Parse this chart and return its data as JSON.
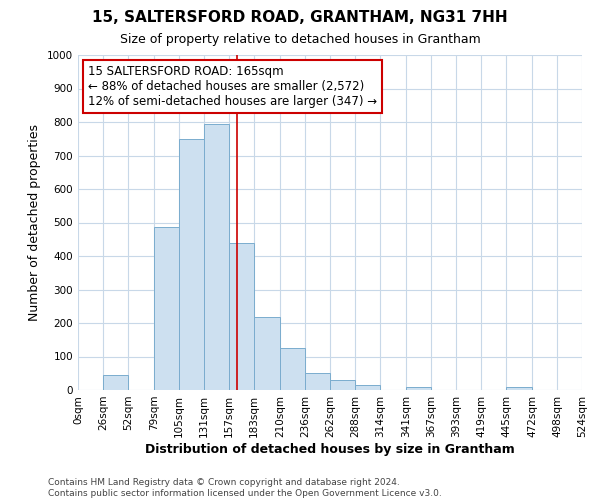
{
  "title": "15, SALTERSFORD ROAD, GRANTHAM, NG31 7HH",
  "subtitle": "Size of property relative to detached houses in Grantham",
  "xlabel": "Distribution of detached houses by size in Grantham",
  "ylabel": "Number of detached properties",
  "bar_left_edges": [
    0,
    26,
    52,
    79,
    105,
    131,
    157,
    183,
    210,
    236,
    262,
    288,
    314,
    341,
    367,
    393,
    419,
    445,
    472,
    498
  ],
  "bar_widths": [
    26,
    26,
    27,
    26,
    26,
    26,
    26,
    27,
    26,
    26,
    26,
    26,
    27,
    26,
    26,
    26,
    26,
    27,
    26,
    26
  ],
  "bar_heights": [
    0,
    44,
    0,
    487,
    750,
    793,
    438,
    218,
    125,
    52,
    29,
    14,
    0,
    9,
    0,
    0,
    0,
    8,
    0,
    0
  ],
  "bar_color": "#cde0f0",
  "bar_edgecolor": "#7aacce",
  "highlight_line_x": 165,
  "highlight_line_color": "#cc0000",
  "ylim": [
    0,
    1000
  ],
  "yticks": [
    0,
    100,
    200,
    300,
    400,
    500,
    600,
    700,
    800,
    900,
    1000
  ],
  "xtick_labels": [
    "0sqm",
    "26sqm",
    "52sqm",
    "79sqm",
    "105sqm",
    "131sqm",
    "157sqm",
    "183sqm",
    "210sqm",
    "236sqm",
    "262sqm",
    "288sqm",
    "314sqm",
    "341sqm",
    "367sqm",
    "393sqm",
    "419sqm",
    "445sqm",
    "472sqm",
    "498sqm",
    "524sqm"
  ],
  "xtick_positions": [
    0,
    26,
    52,
    79,
    105,
    131,
    157,
    183,
    210,
    236,
    262,
    288,
    314,
    341,
    367,
    393,
    419,
    445,
    472,
    498,
    524
  ],
  "xlim": [
    0,
    524
  ],
  "annotation_title": "15 SALTERSFORD ROAD: 165sqm",
  "annotation_line1": "← 88% of detached houses are smaller (2,572)",
  "annotation_line2": "12% of semi-detached houses are larger (347) →",
  "annotation_box_facecolor": "white",
  "annotation_box_edgecolor": "#cc0000",
  "footnote1": "Contains HM Land Registry data © Crown copyright and database right 2024.",
  "footnote2": "Contains public sector information licensed under the Open Government Licence v3.0.",
  "background_color": "white",
  "grid_color": "#c8d8e8",
  "title_fontsize": 11,
  "subtitle_fontsize": 9,
  "ylabel_fontsize": 9,
  "xlabel_fontsize": 9,
  "tick_fontsize": 7.5,
  "annot_fontsize": 8.5,
  "footnote_fontsize": 6.5
}
